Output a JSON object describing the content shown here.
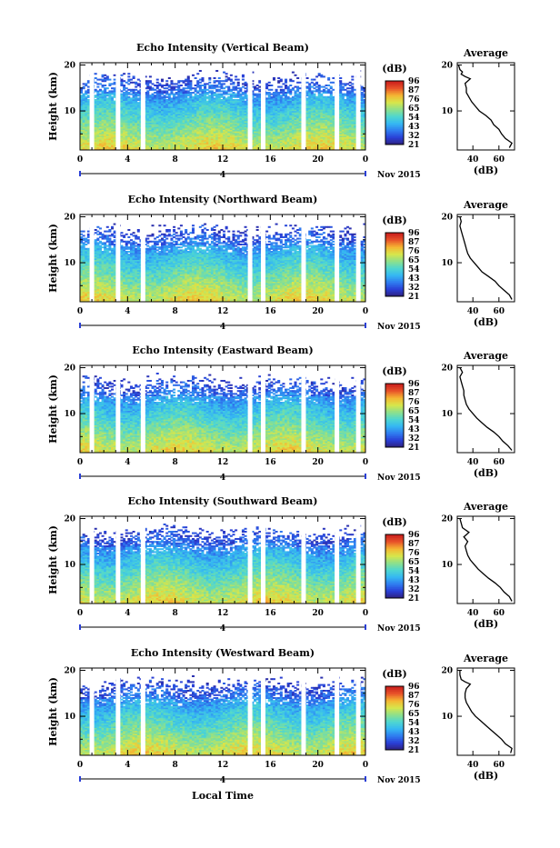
{
  "page": {
    "background": "#ffffff",
    "xlabel": "Local Time",
    "date_label": "Nov 2015",
    "day_label": "4"
  },
  "colorscale": [
    "#2e1f7a",
    "#2a3fd6",
    "#2f7cf0",
    "#35b8f2",
    "#4fd7d0",
    "#8fe08a",
    "#d8e64a",
    "#f5b533",
    "#e8532a",
    "#c91d1d"
  ],
  "colorbar": {
    "label": "(dB)",
    "ticks": [
      "96",
      "87",
      "76",
      "65",
      "54",
      "43",
      "32",
      "21"
    ]
  },
  "profile_panel": {
    "title": "Average",
    "xlabel": "(dB)",
    "xticks": [
      "40",
      "60"
    ]
  },
  "chart_data": [
    {
      "type": "heatmap",
      "title": "Echo Intensity (Vertical Beam)",
      "xlabel": "Local Time",
      "ylabel": "Height (km)",
      "xticks": [
        "0",
        "4",
        "8",
        "12",
        "16",
        "20",
        "0"
      ],
      "yticks": [
        "20",
        "10"
      ],
      "xlim": [
        0,
        24
      ],
      "ylim": [
        1.5,
        20.5
      ],
      "zlim": [
        21,
        96
      ],
      "colorbar_label": "(dB)",
      "colorbar_ticks": [
        96,
        87,
        76,
        65,
        54,
        43,
        32,
        21
      ],
      "data_gaps_hours": [
        1.0,
        3.2,
        5.3,
        14.3,
        15.4,
        18.8,
        21.6,
        23.4
      ],
      "average_profile": {
        "title": "Average",
        "xlabel": "(dB)",
        "xticks": [
          40,
          60
        ],
        "xlim": [
          28,
          72
        ],
        "height_km": [
          2.0,
          3,
          4,
          5,
          6,
          7,
          8,
          9,
          10,
          11,
          12,
          13,
          14,
          15,
          16,
          17,
          17.5,
          18,
          18.5,
          19,
          20
        ],
        "db": [
          68,
          70,
          65,
          62,
          60,
          56,
          54,
          50,
          45,
          42,
          39,
          37,
          35,
          35,
          34,
          38,
          34,
          31,
          32,
          30,
          29
        ]
      }
    },
    {
      "type": "heatmap",
      "title": "Echo Intensity (Northward Beam)",
      "xlabel": "Local Time",
      "ylabel": "Height (km)",
      "xticks": [
        "0",
        "4",
        "8",
        "12",
        "16",
        "20",
        "0"
      ],
      "yticks": [
        "20",
        "10"
      ],
      "xlim": [
        0,
        24
      ],
      "ylim": [
        1.5,
        20.5
      ],
      "zlim": [
        21,
        96
      ],
      "colorbar_label": "(dB)",
      "colorbar_ticks": [
        96,
        87,
        76,
        65,
        54,
        43,
        32,
        21
      ],
      "data_gaps_hours": [
        1.0,
        3.2,
        5.3,
        14.3,
        15.4,
        18.8,
        21.6,
        23.4
      ],
      "average_profile": {
        "title": "Average",
        "xlabel": "(dB)",
        "xticks": [
          40,
          60
        ],
        "xlim": [
          28,
          72
        ],
        "height_km": [
          2.0,
          3,
          4,
          5,
          6,
          7,
          8,
          9,
          10,
          11,
          12,
          13,
          14,
          15,
          16,
          17,
          18,
          19,
          20
        ],
        "db": [
          70,
          68,
          64,
          60,
          57,
          52,
          47,
          44,
          41,
          38,
          36,
          35,
          34,
          33,
          32,
          31,
          30,
          31,
          30
        ]
      }
    },
    {
      "type": "heatmap",
      "title": "Echo Intensity (Eastward Beam)",
      "xlabel": "Local Time",
      "ylabel": "Height (km)",
      "xticks": [
        "0",
        "4",
        "8",
        "12",
        "16",
        "20",
        "0"
      ],
      "yticks": [
        "20",
        "10"
      ],
      "xlim": [
        0,
        24
      ],
      "ylim": [
        1.5,
        20.5
      ],
      "zlim": [
        21,
        96
      ],
      "colorbar_label": "(dB)",
      "colorbar_ticks": [
        96,
        87,
        76,
        65,
        54,
        43,
        32,
        21
      ],
      "data_gaps_hours": [
        1.0,
        3.2,
        5.3,
        14.3,
        15.4,
        18.8,
        21.6,
        23.4
      ],
      "average_profile": {
        "title": "Average",
        "xlabel": "(dB)",
        "xticks": [
          40,
          60
        ],
        "xlim": [
          28,
          72
        ],
        "height_km": [
          2.0,
          3,
          4,
          5,
          6,
          7,
          8,
          9,
          10,
          11,
          12,
          13,
          14,
          15,
          16,
          17,
          18,
          19,
          20
        ],
        "db": [
          70,
          67,
          63,
          60,
          56,
          51,
          47,
          43,
          40,
          37,
          35,
          34,
          33,
          33,
          32,
          31,
          30,
          32,
          30
        ]
      }
    },
    {
      "type": "heatmap",
      "title": "Echo Intensity (Southward Beam)",
      "xlabel": "Local Time",
      "ylabel": "Height (km)",
      "xticks": [
        "0",
        "4",
        "8",
        "12",
        "16",
        "20",
        "0"
      ],
      "yticks": [
        "20",
        "10"
      ],
      "xlim": [
        0,
        24
      ],
      "ylim": [
        1.5,
        20.5
      ],
      "zlim": [
        21,
        96
      ],
      "colorbar_label": "(dB)",
      "colorbar_ticks": [
        96,
        87,
        76,
        65,
        54,
        43,
        32,
        21
      ],
      "data_gaps_hours": [
        1.0,
        3.2,
        5.3,
        14.3,
        15.4,
        18.8,
        21.6,
        23.4
      ],
      "average_profile": {
        "title": "Average",
        "xlabel": "(dB)",
        "xticks": [
          40,
          60
        ],
        "xlim": [
          28,
          72
        ],
        "height_km": [
          2.0,
          3,
          4,
          5,
          6,
          7,
          8,
          9,
          10,
          11,
          12,
          13,
          14,
          15,
          16,
          17,
          18,
          19,
          20
        ],
        "db": [
          70,
          68,
          64,
          61,
          57,
          52,
          48,
          44,
          41,
          38,
          36,
          35,
          34,
          36,
          33,
          37,
          32,
          31,
          30
        ]
      }
    },
    {
      "type": "heatmap",
      "title": "Echo Intensity (Westward Beam)",
      "xlabel": "Local Time",
      "ylabel": "Height (km)",
      "xticks": [
        "0",
        "4",
        "8",
        "12",
        "16",
        "20",
        "0"
      ],
      "yticks": [
        "20",
        "10"
      ],
      "xlim": [
        0,
        24
      ],
      "ylim": [
        1.5,
        20.5
      ],
      "zlim": [
        21,
        96
      ],
      "colorbar_label": "(dB)",
      "colorbar_ticks": [
        96,
        87,
        76,
        65,
        54,
        43,
        32,
        21
      ],
      "data_gaps_hours": [
        1.0,
        3.2,
        5.3,
        14.3,
        15.4,
        18.8,
        21.6,
        23.4
      ],
      "average_profile": {
        "title": "Average",
        "xlabel": "(dB)",
        "xticks": [
          40,
          60
        ],
        "xlim": [
          28,
          72
        ],
        "height_km": [
          2.0,
          3,
          4,
          5,
          6,
          7,
          8,
          9,
          10,
          11,
          12,
          13,
          14,
          15,
          16,
          17,
          17.5,
          18,
          19,
          20
        ],
        "db": [
          69,
          70,
          65,
          62,
          58,
          54,
          50,
          46,
          42,
          39,
          37,
          35,
          34,
          34,
          35,
          38,
          34,
          31,
          30,
          30
        ]
      }
    }
  ]
}
